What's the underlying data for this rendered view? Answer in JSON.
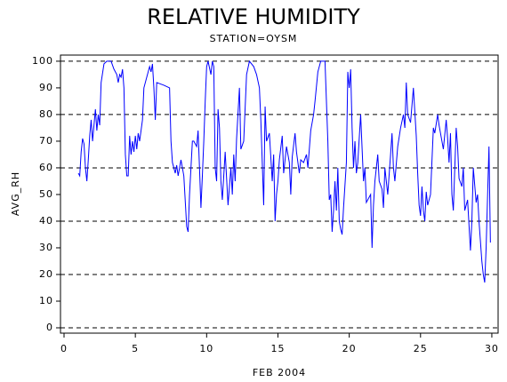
{
  "chart_data": {
    "type": "line",
    "title": "RELATIVE HUMIDITY",
    "subtitle": "STATION=OYSM",
    "x_label": "FEB 2004",
    "y_label": "AVG_RH",
    "xlim": [
      -0.25,
      30.44
    ],
    "ylim": [
      -2,
      102.3
    ],
    "xticks": [
      0,
      5,
      10,
      15,
      20,
      25,
      30
    ],
    "yticks": [
      0,
      10,
      20,
      30,
      40,
      50,
      60,
      70,
      80,
      90,
      100
    ],
    "grid_lines": [
      0,
      20,
      40,
      60,
      80,
      100
    ],
    "x": [
      1.0,
      1.1,
      1.2,
      1.3,
      1.4,
      1.5,
      1.6,
      1.7,
      1.8,
      1.9,
      2.0,
      2.1,
      2.2,
      2.3,
      2.4,
      2.5,
      2.6,
      2.8,
      3.0,
      3.3,
      3.5,
      3.7,
      3.8,
      3.9,
      4.0,
      4.1,
      4.2,
      4.3,
      4.4,
      4.5,
      4.6,
      4.7,
      4.8,
      4.9,
      5.0,
      5.1,
      5.2,
      5.3,
      5.5,
      5.6,
      5.8,
      6.0,
      6.1,
      6.2,
      6.3,
      6.4,
      6.5,
      7.0,
      7.4,
      7.5,
      7.6,
      7.8,
      7.9,
      8.0,
      8.1,
      8.2,
      8.4,
      8.6,
      8.7,
      8.8,
      9.0,
      9.1,
      9.3,
      9.4,
      9.5,
      9.6,
      9.7,
      9.8,
      9.9,
      10.0,
      10.1,
      10.3,
      10.4,
      10.5,
      10.6,
      10.7,
      10.8,
      10.9,
      11.0,
      11.1,
      11.3,
      11.5,
      11.7,
      11.8,
      11.9,
      12.0,
      12.1,
      12.3,
      12.4,
      12.6,
      12.8,
      13.0,
      13.3,
      13.5,
      13.7,
      13.8,
      14.0,
      14.1,
      14.2,
      14.4,
      14.6,
      14.7,
      14.8,
      14.9,
      15.0,
      15.1,
      15.3,
      15.4,
      15.6,
      15.8,
      15.9,
      16.0,
      16.2,
      16.3,
      16.5,
      16.6,
      16.8,
      17.0,
      17.1,
      17.3,
      17.5,
      17.6,
      17.8,
      18.0,
      18.3,
      18.5,
      18.6,
      18.7,
      18.8,
      18.9,
      19.0,
      19.1,
      19.2,
      19.3,
      19.4,
      19.5,
      19.6,
      19.8,
      19.9,
      20.0,
      20.1,
      20.2,
      20.3,
      20.4,
      20.5,
      20.6,
      20.8,
      21.0,
      21.1,
      21.2,
      21.5,
      21.6,
      21.7,
      21.8,
      22.0,
      22.1,
      22.3,
      22.4,
      22.5,
      22.7,
      22.9,
      23.0,
      23.1,
      23.2,
      23.4,
      23.6,
      23.8,
      23.9,
      24.0,
      24.1,
      24.3,
      24.5,
      24.7,
      24.8,
      24.9,
      25.0,
      25.1,
      25.2,
      25.3,
      25.4,
      25.5,
      25.7,
      25.9,
      26.0,
      26.2,
      26.3,
      26.5,
      26.6,
      26.8,
      26.9,
      27.0,
      27.1,
      27.2,
      27.3,
      27.5,
      27.6,
      27.7,
      27.9,
      28.0,
      28.1,
      28.3,
      28.5,
      28.6,
      28.7,
      28.9,
      29.0,
      29.1,
      29.3,
      29.4,
      29.5,
      29.6,
      29.8,
      29.9
    ],
    "series": [
      {
        "name": "AVG_RH",
        "color": "#0000ff",
        "values": [
          58,
          57,
          66,
          71,
          69,
          60,
          55,
          63,
          72,
          78,
          70,
          76,
          82,
          74,
          80,
          76,
          92,
          99,
          100,
          100,
          97,
          95,
          92,
          95,
          94,
          97,
          90,
          65,
          57,
          57,
          72,
          65,
          70,
          66,
          72,
          67,
          73,
          70,
          78,
          90,
          94,
          98,
          96,
          99,
          90,
          78,
          92,
          91,
          90,
          70,
          62,
          58,
          61,
          57,
          60,
          63,
          57,
          38,
          36,
          50,
          70,
          70,
          68,
          74,
          60,
          45,
          57,
          70,
          85,
          98,
          100,
          95,
          100,
          98,
          60,
          55,
          82,
          75,
          55,
          48,
          66,
          46,
          60,
          50,
          65,
          55,
          71,
          90,
          67,
          70,
          95,
          100,
          98,
          95,
          90,
          78,
          46,
          83,
          70,
          73,
          55,
          65,
          40,
          50,
          55,
          63,
          72,
          58,
          68,
          62,
          50,
          64,
          73,
          66,
          58,
          63,
          62,
          65,
          60,
          74,
          80,
          85,
          96,
          100,
          100,
          70,
          48,
          50,
          36,
          44,
          55,
          44,
          60,
          40,
          37,
          35,
          45,
          62,
          96,
          90,
          97,
          75,
          60,
          70,
          58,
          62,
          80,
          55,
          60,
          47,
          50,
          30,
          46,
          55,
          65,
          55,
          52,
          45,
          60,
          50,
          65,
          73,
          60,
          55,
          68,
          75,
          80,
          75,
          92,
          80,
          77,
          90,
          72,
          58,
          46,
          42,
          53,
          44,
          40,
          51,
          46,
          50,
          75,
          73,
          80,
          76,
          70,
          67,
          78,
          71,
          62,
          73,
          50,
          44,
          75,
          68,
          56,
          53,
          60,
          44,
          48,
          29,
          40,
          60,
          47,
          50,
          40,
          25,
          20,
          17,
          30,
          68,
          32
        ]
      }
    ]
  }
}
